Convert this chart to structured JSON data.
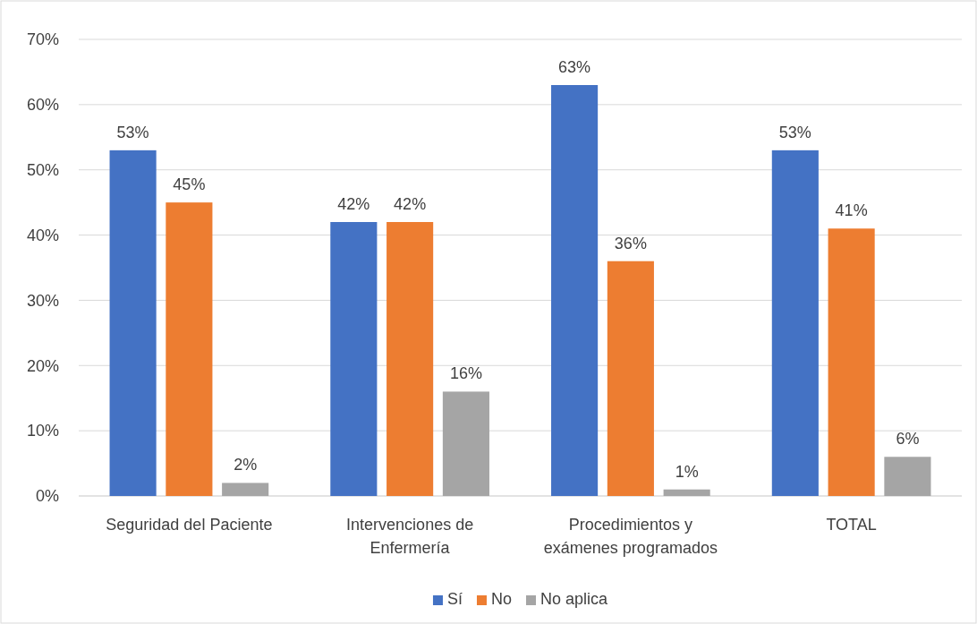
{
  "chart_data": {
    "type": "bar",
    "categories": [
      "Seguridad del Paciente",
      "Intervenciones de Enfermería",
      "Procedimientos y exámenes programados",
      "TOTAL"
    ],
    "series": [
      {
        "name": "Sí",
        "color": "#4472c4",
        "values": [
          53,
          42,
          63,
          53
        ],
        "value_labels": [
          "53%",
          "42%",
          "63%",
          "53%"
        ]
      },
      {
        "name": "No",
        "color": "#ed7d31",
        "values": [
          45,
          42,
          36,
          41
        ],
        "value_labels": [
          "45%",
          "42%",
          "36%",
          "41%"
        ]
      },
      {
        "name": "No aplica",
        "color": "#a5a5a5",
        "values": [
          2,
          16,
          1,
          6
        ],
        "value_labels": [
          "2%",
          "16%",
          "1%",
          "6%"
        ]
      }
    ],
    "ylim": [
      0,
      70
    ],
    "yticks": [
      {
        "value": 0,
        "label": "0%"
      },
      {
        "value": 10,
        "label": "10%"
      },
      {
        "value": 20,
        "label": "20%"
      },
      {
        "value": 30,
        "label": "30%"
      },
      {
        "value": 40,
        "label": "40%"
      },
      {
        "value": 50,
        "label": "50%"
      },
      {
        "value": 60,
        "label": "60%"
      },
      {
        "value": 70,
        "label": "70%"
      }
    ],
    "grid": "y",
    "legend": "bottom"
  }
}
